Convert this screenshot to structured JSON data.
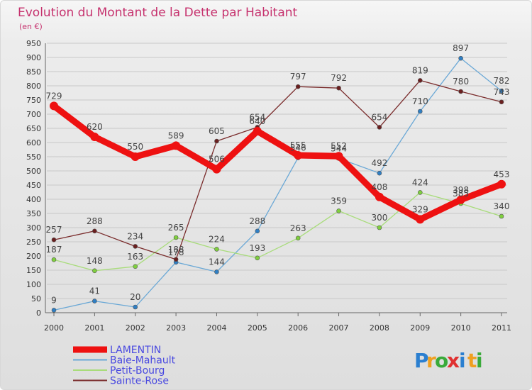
{
  "chart_data": {
    "type": "line",
    "title": "Evolution du Montant de la Dette par Habitant",
    "subtitle": "(en €)",
    "xlabel": "",
    "ylabel": "",
    "ylim": [
      0,
      950
    ],
    "yticks": [
      "0",
      "50",
      "100",
      "150",
      "200",
      "250",
      "300",
      "350",
      "400",
      "450",
      "500",
      "550",
      "600",
      "650",
      "700",
      "750",
      "800",
      "850",
      "900",
      "950"
    ],
    "categories": [
      "2000",
      "2001",
      "2002",
      "2003",
      "2004",
      "2005",
      "2006",
      "2007",
      "2008",
      "2009",
      "2010",
      "2011"
    ],
    "grid": "horizontal",
    "legend_position": "bottom-left",
    "series": [
      {
        "name": "LAMENTIN",
        "color": "#ee1111",
        "marker": "#ee1111",
        "values": [
          729,
          620,
          550,
          589,
          506,
          640,
          555,
          552,
          408,
          329,
          398,
          453
        ]
      },
      {
        "name": "Baie-Mahault",
        "color": "#6aa8d6",
        "marker": "#2f7fc4",
        "values": [
          9,
          41,
          20,
          178,
          144,
          288,
          546,
          544,
          492,
          710,
          897,
          782
        ]
      },
      {
        "name": "Petit-Bourg",
        "color": "#a8dc7a",
        "marker": "#7fcf3e",
        "values": [
          187,
          148,
          163,
          265,
          224,
          193,
          263,
          359,
          300,
          424,
          385,
          340
        ]
      },
      {
        "name": "Sainte-Rose",
        "color": "#7a2c2c",
        "marker": "#6b1f1f",
        "values": [
          257,
          288,
          234,
          188,
          605,
          654,
          797,
          792,
          654,
          819,
          780,
          743
        ]
      }
    ]
  },
  "brand": {
    "letters": [
      "P",
      "r",
      "o",
      "x",
      "i",
      "t",
      "i"
    ],
    "colors": [
      "#2b7fd0",
      "#f0a020",
      "#3aaa3a",
      "#e03030",
      "#2b7fd0",
      "#f0a020",
      "#3aaa3a"
    ]
  }
}
